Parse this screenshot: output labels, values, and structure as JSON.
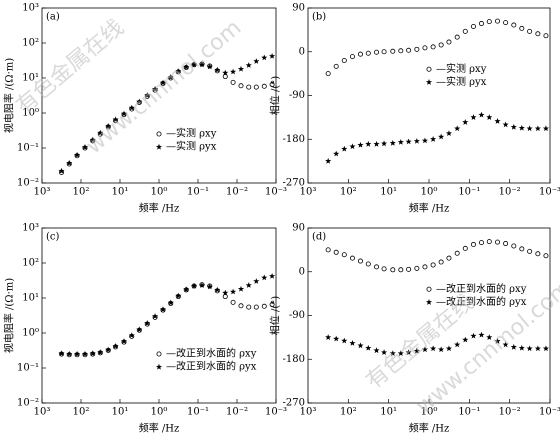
{
  "chart_data": [
    {
      "type": "scatter",
      "panel_label": "(a)",
      "xlabel": "频率 /Hz",
      "ylabel": "视电阻率 /(Ω·m)",
      "x_log": true,
      "y_log": true,
      "grid": false,
      "legend_loc": "lower right",
      "xlim": [
        1000,
        0.001
      ],
      "ylim": [
        0.01,
        1000
      ],
      "xticks": [
        {
          "value": 1000,
          "label": "10³"
        },
        {
          "value": 100,
          "label": "10²"
        },
        {
          "value": 10,
          "label": "10¹"
        },
        {
          "value": 1,
          "label": "10⁰"
        },
        {
          "value": 0.1,
          "label": "10⁻¹"
        },
        {
          "value": 0.01,
          "label": "10⁻²"
        },
        {
          "value": 0.001,
          "label": "10⁻³"
        }
      ],
      "yticks": [
        {
          "value": 0.01,
          "label": "10⁻²"
        },
        {
          "value": 0.1,
          "label": "10⁻¹"
        },
        {
          "value": 1,
          "label": "10⁰"
        },
        {
          "value": 10,
          "label": "10¹"
        },
        {
          "value": 100,
          "label": "10²"
        },
        {
          "value": 1000,
          "label": "10³"
        }
      ],
      "x": [
        316,
        200,
        126,
        79,
        50,
        32,
        20,
        13,
        7.9,
        5,
        3.2,
        2,
        1.26,
        0.79,
        0.5,
        0.32,
        0.2,
        0.126,
        0.079,
        0.05,
        0.032,
        0.02,
        0.0126,
        0.0079,
        0.005,
        0.0032,
        0.002,
        0.00126
      ],
      "series": [
        {
          "name": "—实测 ρxy",
          "marker": "o",
          "color": "#000000",
          "values": [
            0.02,
            0.035,
            0.06,
            0.1,
            0.16,
            0.25,
            0.4,
            0.6,
            0.9,
            1.3,
            2,
            3,
            4.5,
            7,
            10,
            15,
            20,
            24,
            25,
            22,
            16,
            11,
            7.5,
            6,
            5.5,
            5.5,
            5.8,
            6.5
          ]
        },
        {
          "name": "—实测 ρyx",
          "marker": "*",
          "color": "#000000",
          "values": [
            0.022,
            0.037,
            0.063,
            0.105,
            0.17,
            0.27,
            0.42,
            0.65,
            0.95,
            1.4,
            2.1,
            3.2,
            4.8,
            7.3,
            10.5,
            15.5,
            20.5,
            24,
            24,
            21,
            17,
            14,
            15,
            18,
            23,
            30,
            38,
            42
          ]
        }
      ]
    },
    {
      "type": "scatter",
      "panel_label": "(b)",
      "xlabel": "频率 /Hz",
      "ylabel": "相位 /(°)",
      "x_log": true,
      "y_log": false,
      "grid": false,
      "legend_loc": "upper right",
      "xlim": [
        1000,
        0.001
      ],
      "ylim": [
        -270,
        90
      ],
      "xticks": [
        {
          "value": 1000,
          "label": "10³"
        },
        {
          "value": 100,
          "label": "10²"
        },
        {
          "value": 10,
          "label": "10¹"
        },
        {
          "value": 1,
          "label": "10⁰"
        },
        {
          "value": 0.1,
          "label": "10⁻¹"
        },
        {
          "value": 0.01,
          "label": "10⁻²"
        },
        {
          "value": 0.001,
          "label": "10⁻³"
        }
      ],
      "yticks": [
        -270,
        -180,
        -90,
        0,
        90
      ],
      "x": [
        316,
        200,
        126,
        79,
        50,
        32,
        20,
        13,
        7.9,
        5,
        3.2,
        2,
        1.26,
        0.79,
        0.5,
        0.32,
        0.2,
        0.126,
        0.079,
        0.05,
        0.032,
        0.02,
        0.0126,
        0.0079,
        0.005,
        0.0032,
        0.002,
        0.00126
      ],
      "series": [
        {
          "name": "—实测 ρxy",
          "marker": "o",
          "color": "#000000",
          "values": [
            -45,
            -30,
            -18,
            -10,
            -5,
            -3,
            -1,
            0,
            1,
            2,
            3,
            5,
            8,
            10,
            14,
            20,
            30,
            42,
            52,
            58,
            62,
            63,
            60,
            55,
            48,
            42,
            37,
            33
          ]
        },
        {
          "name": "—实测 ρyx",
          "marker": "*",
          "color": "#000000",
          "values": [
            -225,
            -210,
            -200,
            -195,
            -192,
            -190,
            -190,
            -189,
            -188,
            -186,
            -185,
            -184,
            -183,
            -180,
            -175,
            -168,
            -158,
            -145,
            -135,
            -130,
            -135,
            -143,
            -150,
            -155,
            -157,
            -158,
            -158,
            -158
          ]
        }
      ]
    },
    {
      "type": "scatter",
      "panel_label": "(c)",
      "xlabel": "频率 /Hz",
      "ylabel": "视电阻率 /(Ω·m)",
      "x_log": true,
      "y_log": true,
      "grid": false,
      "legend_loc": "lower right",
      "xlim": [
        1000,
        0.001
      ],
      "ylim": [
        0.01,
        1000
      ],
      "xticks": [
        {
          "value": 1000,
          "label": "10³"
        },
        {
          "value": 100,
          "label": "10²"
        },
        {
          "value": 10,
          "label": "10¹"
        },
        {
          "value": 1,
          "label": "10⁰"
        },
        {
          "value": 0.1,
          "label": "10⁻¹"
        },
        {
          "value": 0.01,
          "label": "10⁻²"
        },
        {
          "value": 0.001,
          "label": "10⁻³"
        }
      ],
      "yticks": [
        {
          "value": 0.01,
          "label": "10⁻²"
        },
        {
          "value": 0.1,
          "label": "10⁻¹"
        },
        {
          "value": 1,
          "label": "10⁰"
        },
        {
          "value": 10,
          "label": "10¹"
        },
        {
          "value": 100,
          "label": "10²"
        },
        {
          "value": 1000,
          "label": "10³"
        }
      ],
      "x": [
        316,
        200,
        126,
        79,
        50,
        32,
        20,
        13,
        7.9,
        5,
        3.2,
        2,
        1.26,
        0.79,
        0.5,
        0.32,
        0.2,
        0.126,
        0.079,
        0.05,
        0.032,
        0.02,
        0.0126,
        0.0079,
        0.005,
        0.0032,
        0.002,
        0.00126
      ],
      "series": [
        {
          "name": "—改正到水面的 ρxy",
          "marker": "o",
          "color": "#000000",
          "values": [
            0.25,
            0.24,
            0.24,
            0.24,
            0.25,
            0.27,
            0.32,
            0.4,
            0.55,
            0.8,
            1.2,
            1.8,
            2.8,
            4.5,
            7,
            11,
            17,
            22,
            24,
            22,
            16,
            11,
            7.5,
            6,
            5.5,
            5.5,
            5.8,
            6.5
          ]
        },
        {
          "name": "—改正到水面的 ρyx",
          "marker": "*",
          "color": "#000000",
          "values": [
            0.26,
            0.25,
            0.25,
            0.25,
            0.26,
            0.28,
            0.33,
            0.42,
            0.58,
            0.85,
            1.25,
            1.9,
            3,
            4.7,
            7.3,
            11.5,
            17.5,
            22,
            23,
            21,
            17,
            14,
            15,
            18,
            23,
            30,
            38,
            42
          ]
        }
      ]
    },
    {
      "type": "scatter",
      "panel_label": "(d)",
      "xlabel": "频率 /Hz",
      "ylabel": "相位 /(°)",
      "x_log": true,
      "y_log": false,
      "grid": false,
      "legend_loc": "upper right",
      "xlim": [
        1000,
        0.001
      ],
      "ylim": [
        -270,
        90
      ],
      "xticks": [
        {
          "value": 1000,
          "label": "10³"
        },
        {
          "value": 100,
          "label": "10²"
        },
        {
          "value": 10,
          "label": "10¹"
        },
        {
          "value": 1,
          "label": "10⁰"
        },
        {
          "value": 0.1,
          "label": "10⁻¹"
        },
        {
          "value": 0.01,
          "label": "10⁻²"
        },
        {
          "value": 0.001,
          "label": "10⁻³"
        }
      ],
      "yticks": [
        -270,
        -180,
        -90,
        0,
        90
      ],
      "x": [
        316,
        200,
        126,
        79,
        50,
        32,
        20,
        13,
        7.9,
        5,
        3.2,
        2,
        1.26,
        0.79,
        0.5,
        0.32,
        0.2,
        0.126,
        0.079,
        0.05,
        0.032,
        0.02,
        0.0126,
        0.0079,
        0.005,
        0.0032,
        0.002,
        0.00126
      ],
      "series": [
        {
          "name": "—改正到水面的 ρxy",
          "marker": "o",
          "color": "#000000",
          "values": [
            45,
            40,
            35,
            28,
            22,
            16,
            10,
            6,
            4,
            4,
            5,
            7,
            10,
            14,
            20,
            28,
            38,
            48,
            56,
            60,
            62,
            61,
            58,
            53,
            47,
            42,
            37,
            33
          ]
        },
        {
          "name": "—改正到水面的 ρyx",
          "marker": "*",
          "color": "#000000",
          "values": [
            -135,
            -138,
            -142,
            -147,
            -152,
            -157,
            -162,
            -166,
            -168,
            -168,
            -166,
            -163,
            -160,
            -158,
            -160,
            -158,
            -150,
            -140,
            -132,
            -130,
            -135,
            -143,
            -150,
            -155,
            -157,
            -158,
            -158,
            -158
          ]
        }
      ]
    }
  ],
  "watermark": [
    "有色金属在线",
    "www.cnnmol.com"
  ]
}
